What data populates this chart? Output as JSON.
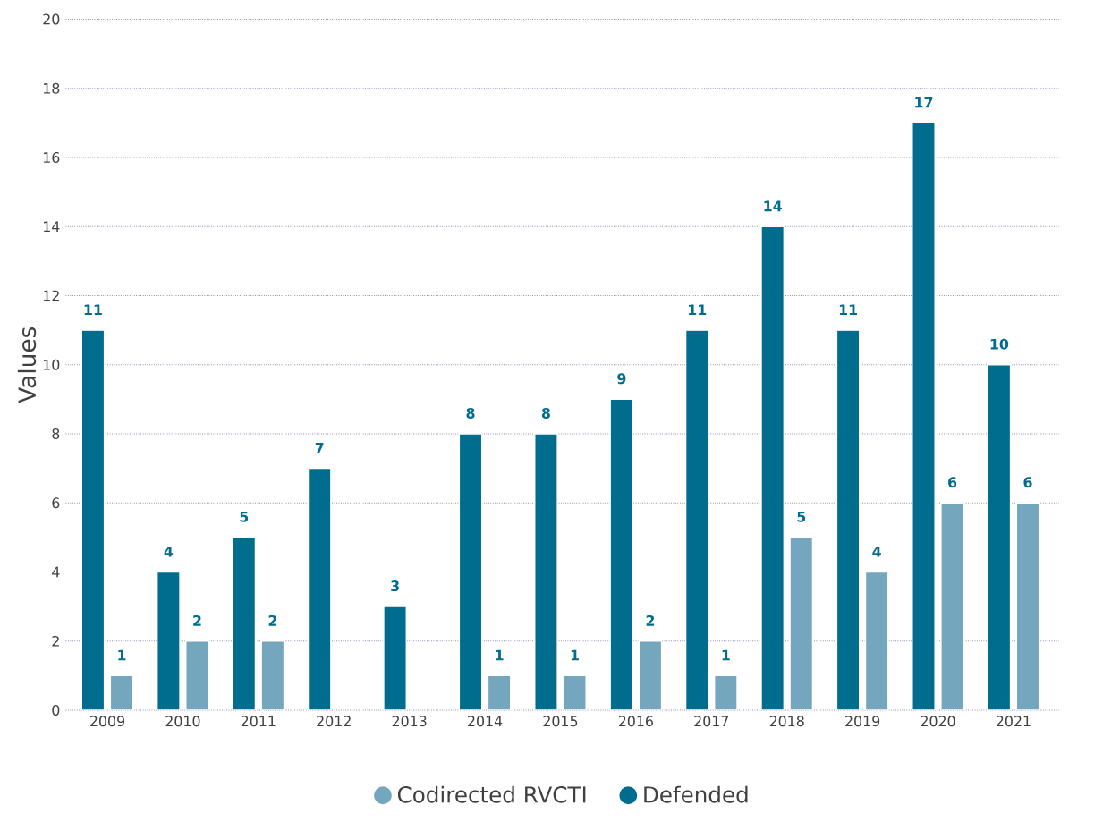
{
  "chart_data": {
    "type": "bar",
    "ylabel": "Values",
    "categories": [
      "2009",
      "2010",
      "2011",
      "2012",
      "2013",
      "2014",
      "2015",
      "2016",
      "2017",
      "2018",
      "2019",
      "2020",
      "2021"
    ],
    "series": [
      {
        "name": "Codirected  RVCTI",
        "color": "#74a7bd",
        "values": [
          1,
          2,
          2,
          null,
          null,
          1,
          1,
          2,
          1,
          5,
          4,
          6,
          6
        ]
      },
      {
        "name": "Defended",
        "color": "#006d8f",
        "values": [
          11,
          4,
          5,
          7,
          3,
          8,
          8,
          9,
          11,
          14,
          11,
          17,
          10
        ]
      }
    ],
    "ylim": [
      0,
      20
    ],
    "yticks": [
      0,
      2,
      4,
      6,
      8,
      10,
      12,
      14,
      16,
      18,
      20
    ],
    "grid": "y",
    "legend": "bottom",
    "data_labels": true
  }
}
